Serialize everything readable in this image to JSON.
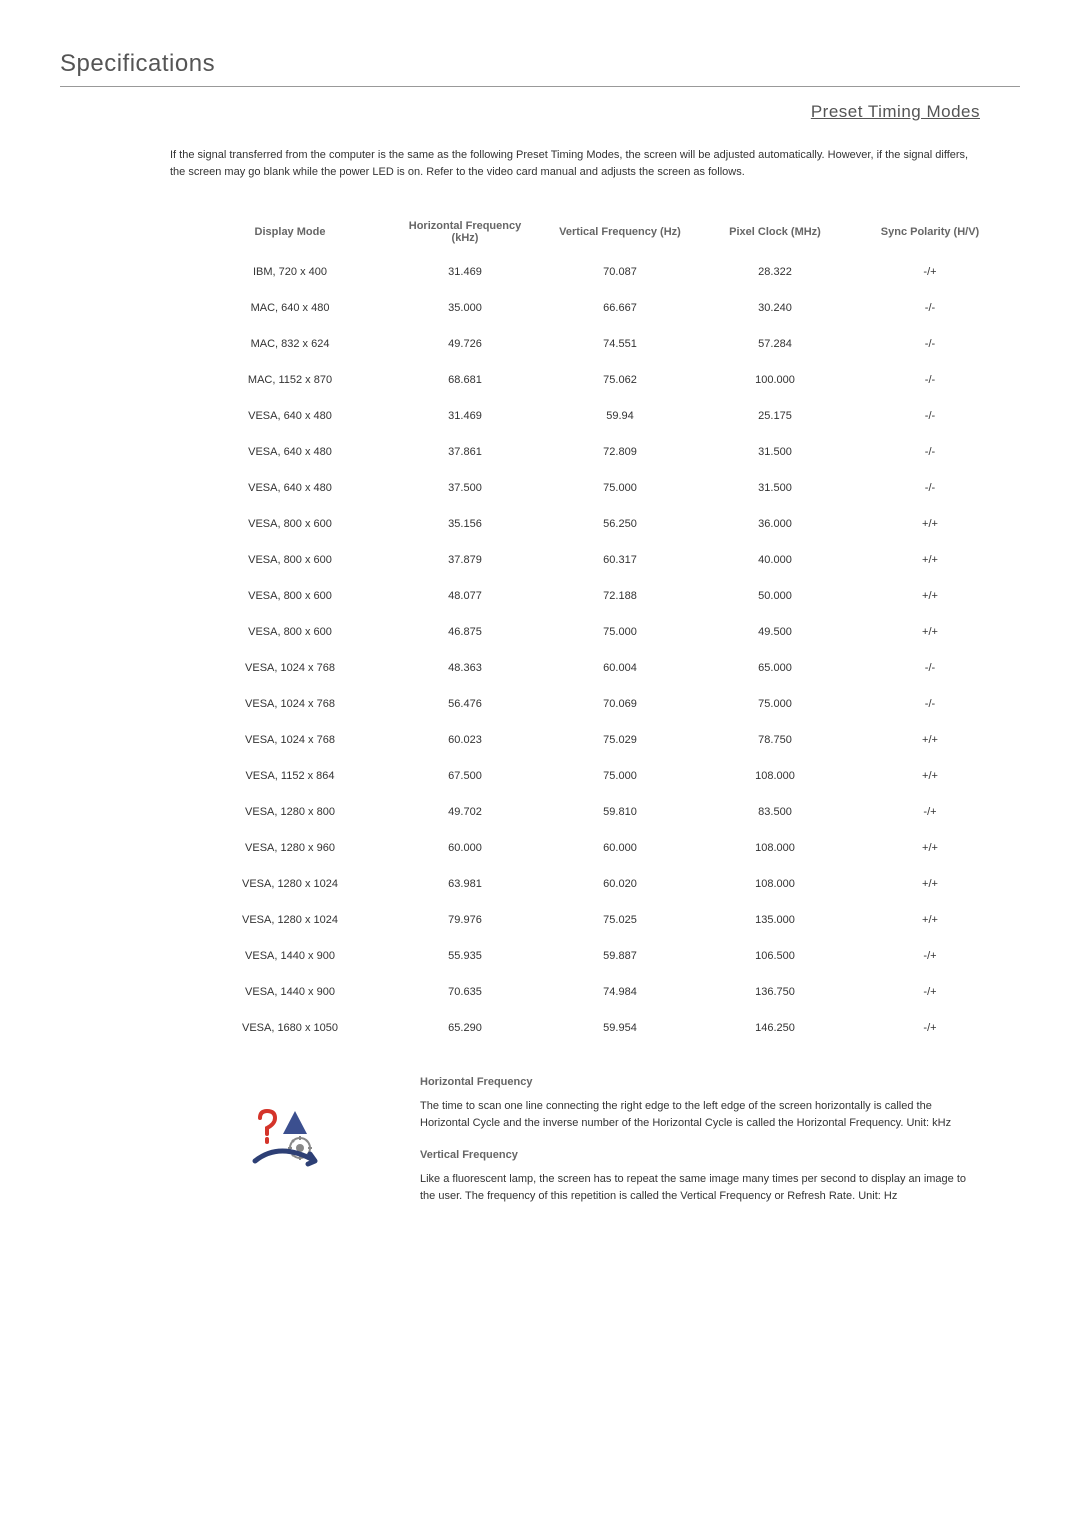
{
  "page": {
    "title": "Specifications",
    "subtitle": "Preset Timing Modes",
    "intro": "If the signal transferred from the computer is the same as the following Preset Timing Modes, the screen will be adjusted automatically. However, if the signal differs, the screen may go blank while the power LED is on. Refer to the video card manual and adjusts the screen as follows."
  },
  "table": {
    "columns": [
      "Display Mode",
      "Horizontal Frequency (kHz)",
      "Vertical Frequency (Hz)",
      "Pixel Clock (MHz)",
      "Sync Polarity (H/V)"
    ],
    "column_widths": [
      "200px",
      "150px",
      "160px",
      "150px",
      "160px"
    ],
    "header_fontsize": 11,
    "header_color": "#666666",
    "cell_fontsize": 11,
    "cell_color": "#333333",
    "rows": [
      [
        "IBM, 720 x 400",
        "31.469",
        "70.087",
        "28.322",
        "-/+"
      ],
      [
        "MAC, 640 x 480",
        "35.000",
        "66.667",
        "30.240",
        "-/-"
      ],
      [
        "MAC, 832 x 624",
        "49.726",
        "74.551",
        "57.284",
        "-/-"
      ],
      [
        "MAC, 1152 x 870",
        "68.681",
        "75.062",
        "100.000",
        "-/-"
      ],
      [
        "VESA, 640 x 480",
        "31.469",
        "59.94",
        "25.175",
        "-/-"
      ],
      [
        "VESA, 640 x 480",
        "37.861",
        "72.809",
        "31.500",
        "-/-"
      ],
      [
        "VESA, 640 x 480",
        "37.500",
        "75.000",
        "31.500",
        "-/-"
      ],
      [
        "VESA, 800 x 600",
        "35.156",
        "56.250",
        "36.000",
        "+/+"
      ],
      [
        "VESA, 800 x 600",
        "37.879",
        "60.317",
        "40.000",
        "+/+"
      ],
      [
        "VESA, 800 x 600",
        "48.077",
        "72.188",
        "50.000",
        "+/+"
      ],
      [
        "VESA, 800 x 600",
        "46.875",
        "75.000",
        "49.500",
        "+/+"
      ],
      [
        "VESA, 1024 x 768",
        "48.363",
        "60.004",
        "65.000",
        "-/-"
      ],
      [
        "VESA, 1024 x 768",
        "56.476",
        "70.069",
        "75.000",
        "-/-"
      ],
      [
        "VESA, 1024 x 768",
        "60.023",
        "75.029",
        "78.750",
        "+/+"
      ],
      [
        "VESA, 1152 x 864",
        "67.500",
        "75.000",
        "108.000",
        "+/+"
      ],
      [
        "VESA, 1280 x 800",
        "49.702",
        "59.810",
        "83.500",
        "-/+"
      ],
      [
        "VESA, 1280 x 960",
        "60.000",
        "60.000",
        "108.000",
        "+/+"
      ],
      [
        "VESA, 1280 x 1024",
        "63.981",
        "60.020",
        "108.000",
        "+/+"
      ],
      [
        "VESA, 1280 x 1024",
        "79.976",
        "75.025",
        "135.000",
        "+/+"
      ],
      [
        "VESA, 1440 x 900",
        "55.935",
        "59.887",
        "106.500",
        "-/+"
      ],
      [
        "VESA, 1440 x 900",
        "70.635",
        "74.984",
        "136.750",
        "-/+"
      ],
      [
        "VESA, 1680 x 1050",
        "65.290",
        "59.954",
        "146.250",
        "-/+"
      ]
    ]
  },
  "definitions": {
    "horizontal": {
      "heading": "Horizontal Frequency",
      "text": "The time to scan one line connecting the right edge to the left edge of the screen horizontally is called the Horizontal Cycle and the inverse number of the Horizontal Cycle is called the Horizontal Frequency. Unit: kHz"
    },
    "vertical": {
      "heading": "Vertical Frequency",
      "text": "Like a fluorescent lamp, the screen has to repeat the same image many times per second to display an image to the user. The frequency of this repetition is called the Vertical Frequency or Refresh Rate. Unit: Hz"
    }
  },
  "icon": {
    "colors": {
      "question_mark": "#d4342a",
      "triangle": "#3b4f8f",
      "gear": "#888888",
      "arrow": "#2d3f75"
    }
  },
  "styling": {
    "background_color": "#ffffff",
    "title_fontsize": 24,
    "title_color": "#555555",
    "subtitle_fontsize": 17,
    "subtitle_color": "#555555",
    "body_fontsize": 11,
    "body_color": "#333333",
    "heading_color": "#666666"
  }
}
